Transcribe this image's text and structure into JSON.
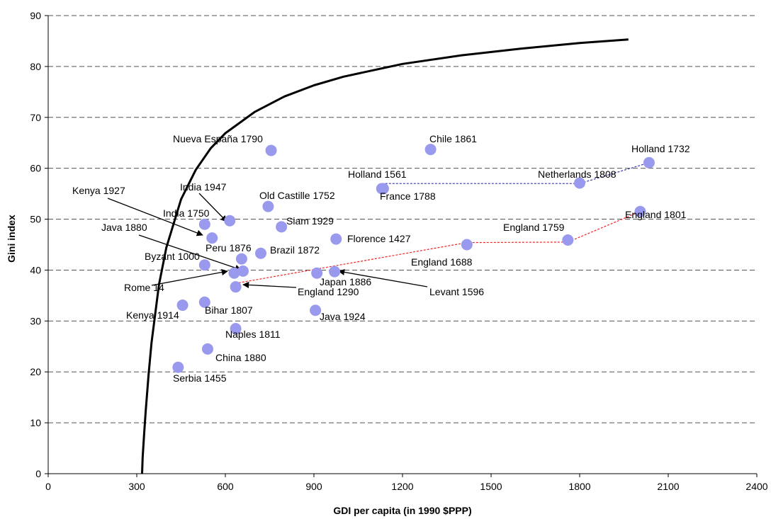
{
  "chart_data": {
    "type": "scatter",
    "title": "",
    "xlabel": "GDI per capita (in 1990 $PPP)",
    "ylabel": "Gini index",
    "xlim": [
      0,
      2400
    ],
    "ylim": [
      0,
      90
    ],
    "x_ticks": [
      0,
      300,
      600,
      900,
      1200,
      1500,
      1800,
      2100,
      2400
    ],
    "y_ticks": [
      0,
      10,
      20,
      30,
      40,
      50,
      60,
      70,
      80,
      90
    ],
    "grid": "horizontal dashed",
    "point_color": "#9999ee",
    "frontier_color": "#000000",
    "points": [
      {
        "label": "Nueva España 1790",
        "x": 755,
        "y": 63.5
      },
      {
        "label": "Chile 1861",
        "x": 1295,
        "y": 63.7
      },
      {
        "label": "Holland 1732",
        "x": 2035,
        "y": 61.1
      },
      {
        "label": "Holland 1561",
        "x": 1130,
        "y": 56.0
      },
      {
        "label": "France 1788",
        "x": 1135,
        "y": 56.0
      },
      {
        "label": "Netherlands 1808",
        "x": 1800,
        "y": 57.1
      },
      {
        "label": "Old Castille 1752",
        "x": 745,
        "y": 52.5
      },
      {
        "label": "England 1801",
        "x": 2005,
        "y": 51.5
      },
      {
        "label": "India 1947",
        "x": 615,
        "y": 49.7
      },
      {
        "label": "Siam 1929",
        "x": 790,
        "y": 48.5
      },
      {
        "label": "India 1750",
        "x": 530,
        "y": 49.0
      },
      {
        "label": "Kenya 1927",
        "x": 555,
        "y": 46.3
      },
      {
        "label": "Florence 1427",
        "x": 975,
        "y": 46.1
      },
      {
        "label": "England 1759",
        "x": 1760,
        "y": 45.9
      },
      {
        "label": "England 1688",
        "x": 1418,
        "y": 45.0
      },
      {
        "label": "Brazil 1872",
        "x": 720,
        "y": 43.3
      },
      {
        "label": "Peru 1876",
        "x": 655,
        "y": 42.2
      },
      {
        "label": "Byzant 1000",
        "x": 530,
        "y": 41.0
      },
      {
        "label": "Java 1880",
        "x": 660,
        "y": 39.8
      },
      {
        "label": "Rome 14",
        "x": 630,
        "y": 39.4
      },
      {
        "label": "Japan 1886",
        "x": 910,
        "y": 39.4
      },
      {
        "label": "Levant 1596",
        "x": 970,
        "y": 39.7
      },
      {
        "label": "England 1290",
        "x": 635,
        "y": 36.7
      },
      {
        "label": "Bihar 1807",
        "x": 530,
        "y": 33.7
      },
      {
        "label": "Kenya 1914",
        "x": 455,
        "y": 33.1
      },
      {
        "label": "Java 1924",
        "x": 905,
        "y": 32.1
      },
      {
        "label": "Naples 1811",
        "x": 635,
        "y": 28.5
      },
      {
        "label": "China 1880",
        "x": 540,
        "y": 24.5
      },
      {
        "label": "Serbia 1455",
        "x": 440,
        "y": 20.9
      }
    ],
    "frontier": {
      "x": [
        318,
        320,
        325,
        330,
        340,
        350,
        375,
        400,
        450,
        500,
        550,
        600,
        700,
        800,
        900,
        1000,
        1200,
        1400,
        1600,
        1800,
        1965
      ],
      "y": [
        0,
        3.2,
        7.8,
        12.1,
        19.5,
        25.7,
        37.1,
        44.4,
        53.9,
        59.7,
        63.9,
        66.9,
        71.1,
        74.1,
        76.3,
        78.0,
        80.5,
        82.2,
        83.5,
        84.6,
        85.3
      ]
    },
    "trend_lines": [
      {
        "color": "#3333aa",
        "x": [
          1130,
          1800,
          2035
        ],
        "y": [
          57.0,
          57.0,
          61.1
        ]
      },
      {
        "color": "#ee2222",
        "x": [
          645,
          1418,
          1760,
          2005
        ],
        "y": [
          37.5,
          45.4,
          45.5,
          51.5
        ]
      }
    ]
  }
}
